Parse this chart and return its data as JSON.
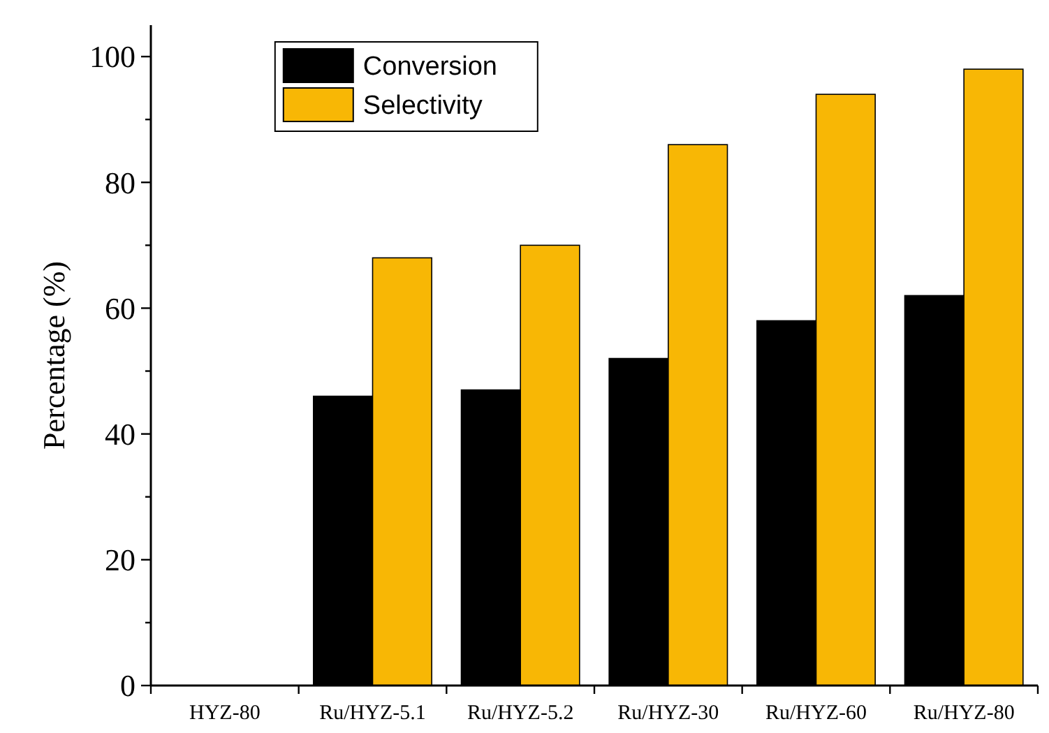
{
  "chart_data": {
    "type": "bar",
    "ylabel": "Percentage (%)",
    "categories": [
      "HYZ-80",
      "Ru/HYZ-5.1",
      "Ru/HYZ-5.2",
      "Ru/HYZ-30",
      "Ru/HYZ-60",
      "Ru/HYZ-80"
    ],
    "series": [
      {
        "name": "Conversion",
        "color": "#000000",
        "values": [
          0,
          46,
          47,
          52,
          58,
          62
        ]
      },
      {
        "name": "Selectivity",
        "color": "#f8b705",
        "values": [
          0,
          68,
          70,
          86,
          94,
          98
        ]
      }
    ],
    "ylim": [
      0,
      105
    ],
    "yticks": [
      0,
      {
        "value": 10,
        "label": null
      },
      20,
      {
        "value": 30,
        "label": null
      },
      40,
      {
        "value": 50,
        "label": null
      },
      60,
      {
        "value": 70,
        "label": null
      },
      80,
      {
        "value": 90,
        "label": null
      },
      100
    ],
    "grid": false,
    "legend": "top left"
  }
}
